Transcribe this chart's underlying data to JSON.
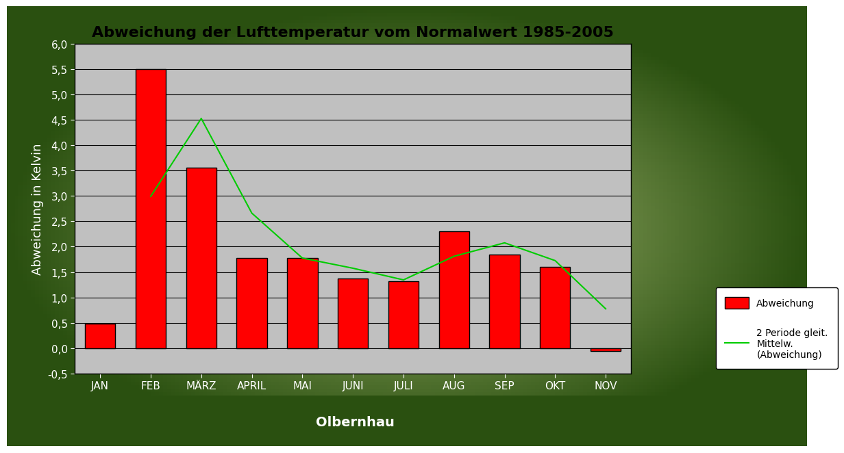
{
  "title": "Abweichung der Lufttemperatur vom Normalwert 1985-2005",
  "xlabel": "Olbernhau",
  "ylabel": "Abweichung in Kelvin",
  "categories": [
    "JAN",
    "FEB",
    "MÄRZ",
    "APRIL",
    "MAI",
    "JUNI",
    "JULI",
    "AUG",
    "SEP",
    "OKT",
    "NOV"
  ],
  "bar_values": [
    0.48,
    5.5,
    3.55,
    1.77,
    1.78,
    1.37,
    1.32,
    2.3,
    1.85,
    1.6,
    -0.05
  ],
  "bar_color": "#FF0000",
  "bar_edgecolor": "#000000",
  "line_color": "#00CC00",
  "ylim": [
    -0.5,
    6.0
  ],
  "yticks": [
    -0.5,
    0.0,
    0.5,
    1.0,
    1.5,
    2.0,
    2.5,
    3.0,
    3.5,
    4.0,
    4.5,
    5.0,
    5.5,
    6.0
  ],
  "plot_bg_color": "#C0C0C0",
  "outer_bg_light": "#C8D8A0",
  "outer_bg_dark": "#3A6020",
  "bottom_strip_color": "#2A5010",
  "legend_label_bar": "Abweichung",
  "legend_label_line": "2 Periode gleit.\nMittelw.\n(Abweichung)",
  "title_fontsize": 16,
  "axis_label_fontsize": 13,
  "tick_fontsize": 11,
  "text_color_white": "#FFFFFF",
  "text_color_black": "#000000"
}
